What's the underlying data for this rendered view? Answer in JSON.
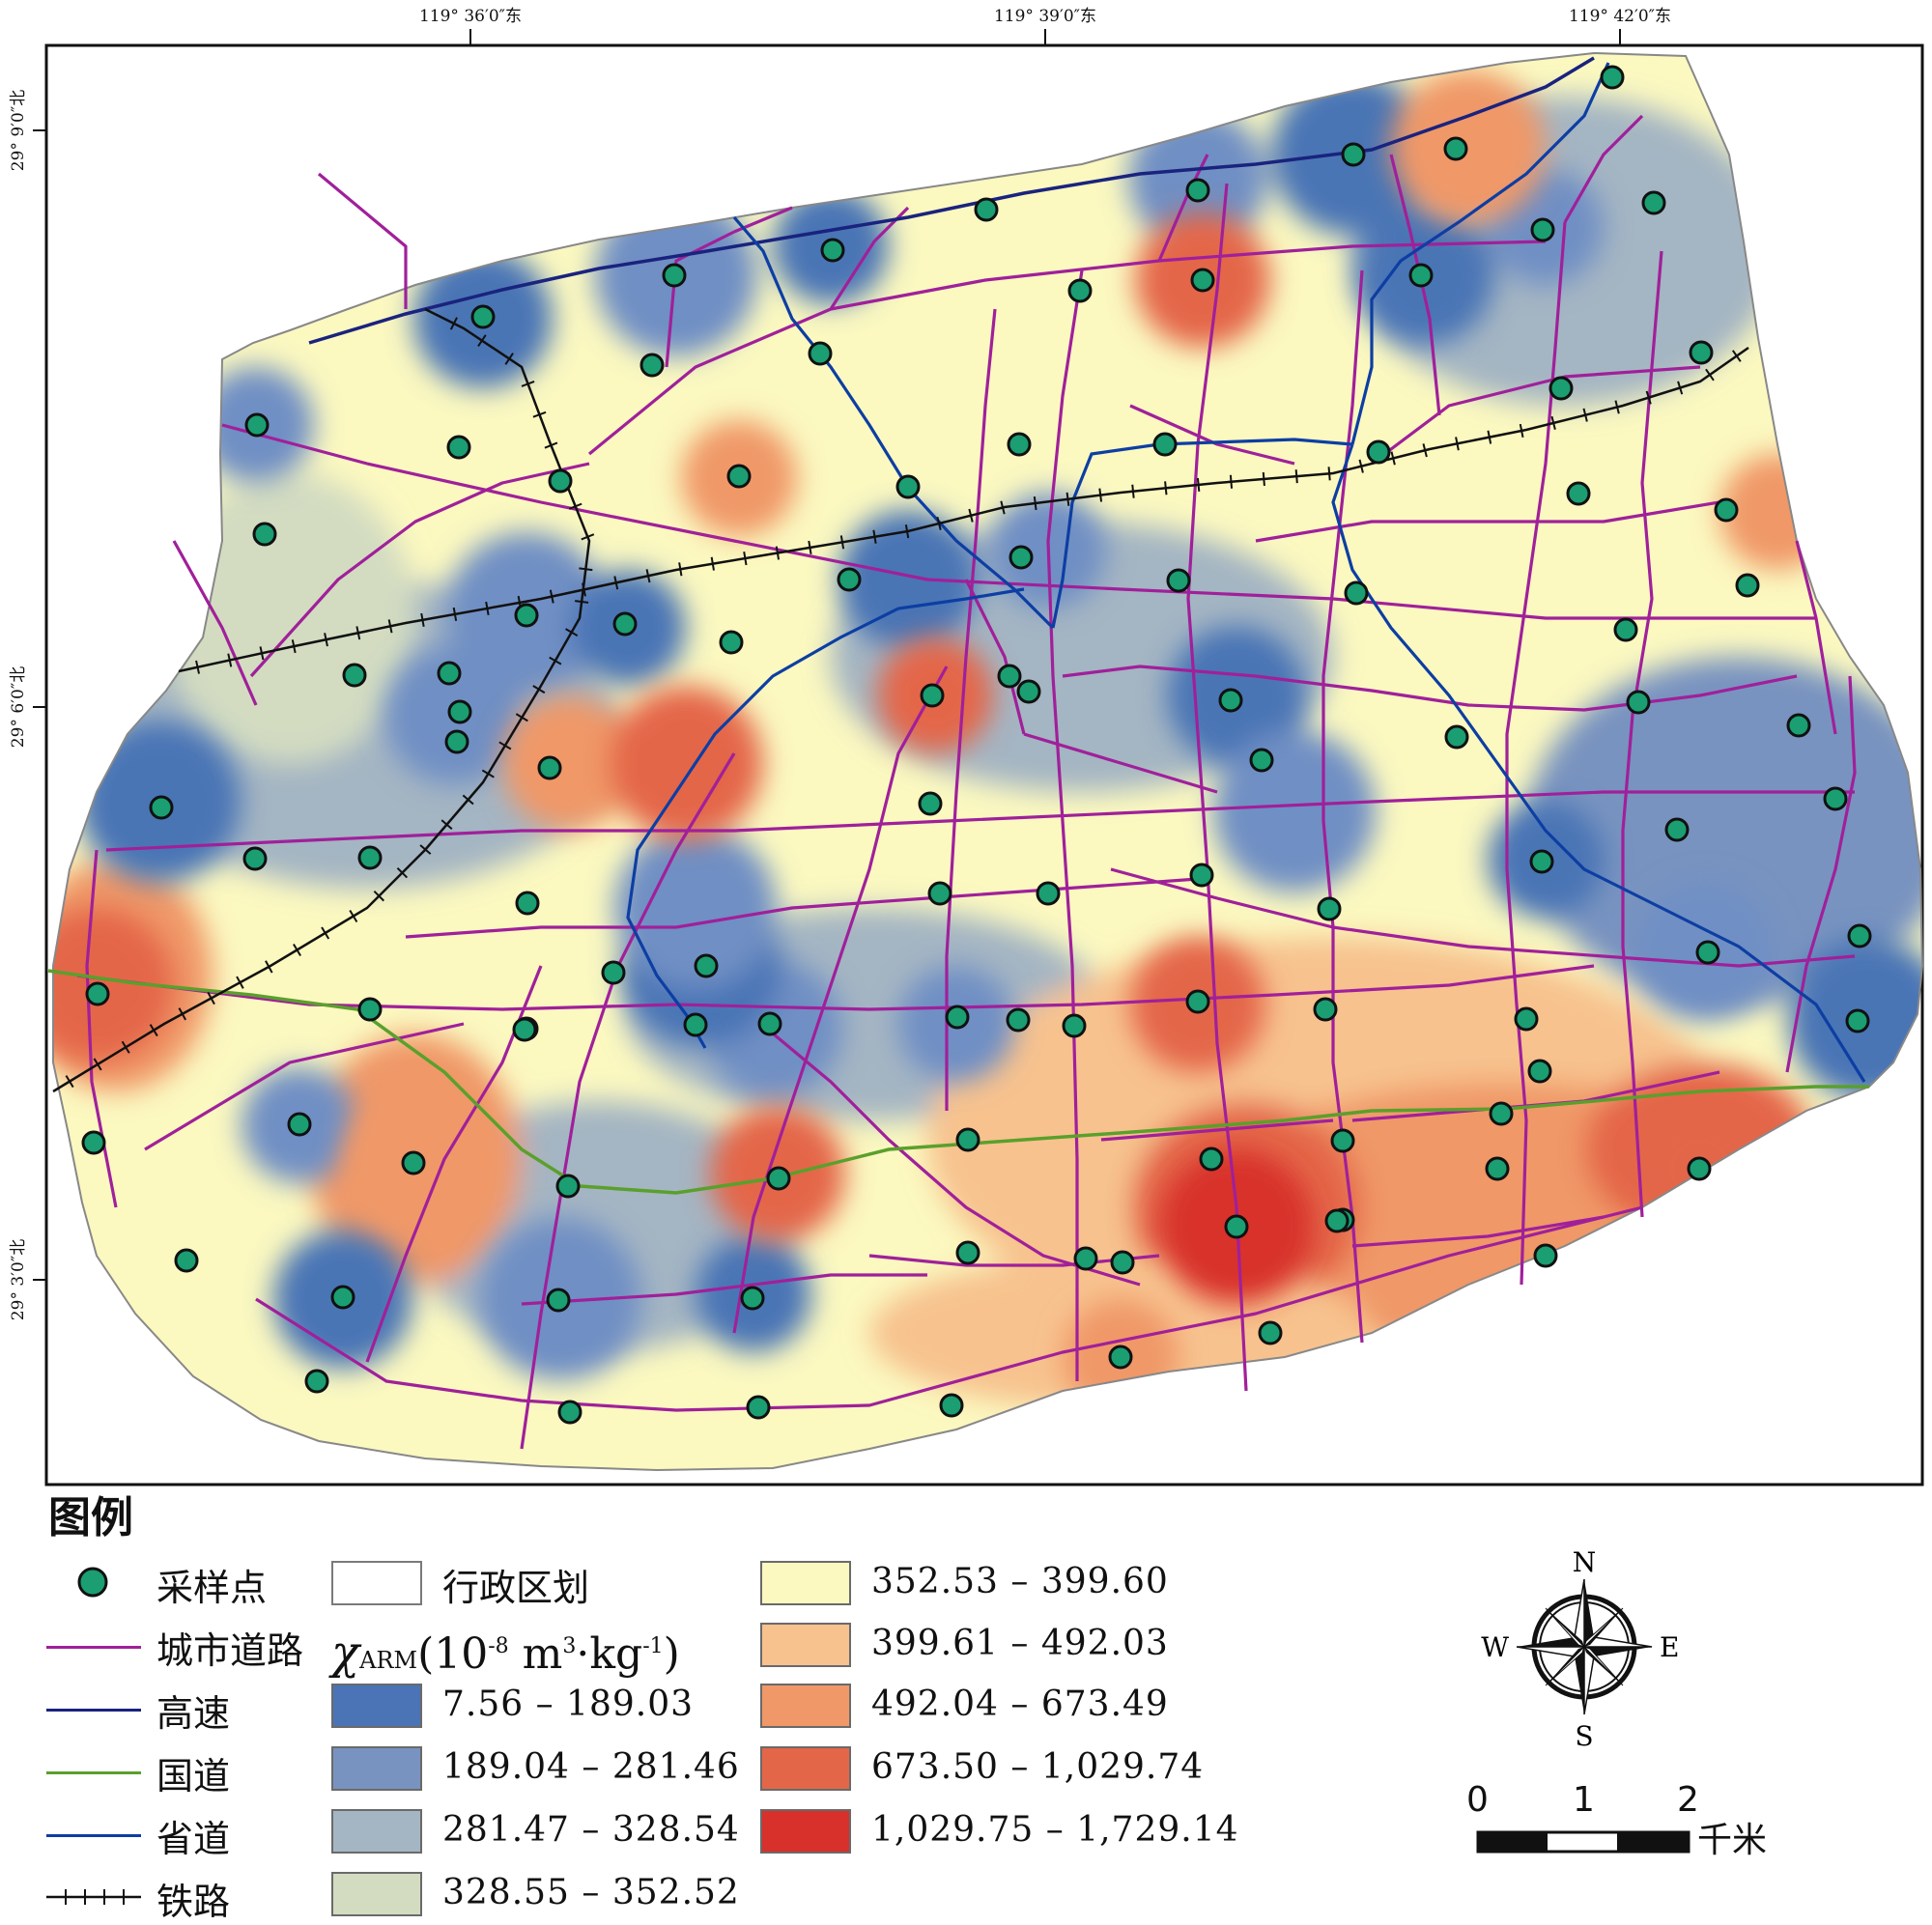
{
  "map": {
    "coords_top": [
      "119° 36′0″东",
      "119° 39′0″东",
      "119° 42′0″东"
    ],
    "coords_left": [
      "29° 9′0″北",
      "29° 6′0″北",
      "29° 3′0″北"
    ]
  },
  "legend": {
    "title": "图例",
    "sample_points": "采样点",
    "admin_boundary": "行政区划",
    "city_road": "城市道路",
    "highway": "高速",
    "national_road": "国道",
    "provincial_road": "省道",
    "railway": "铁路",
    "unit": {
      "symbol": "χ",
      "sub": "ARM",
      "base": "10",
      "exp1": "-8",
      "m": " m",
      "exp2": "3",
      "kg": "·kg",
      "exp3": "-1"
    },
    "classes": [
      {
        "range": "7.56  –  189.03",
        "color": "#4a74b5"
      },
      {
        "range": "189.04  –  281.46",
        "color": "#7893c0"
      },
      {
        "range": "281.47  –  328.54",
        "color": "#a4b5c3"
      },
      {
        "range": "328.55  –  352.52",
        "color": "#d3dcc1"
      },
      {
        "range": "352.53  –  399.60",
        "color": "#fbf8c0"
      },
      {
        "range": "399.61  –  492.03",
        "color": "#f7c28e"
      },
      {
        "range": "492.04  –  673.49",
        "color": "#f09868"
      },
      {
        "range": "673.50  –  1,029.74",
        "color": "#e46649"
      },
      {
        "range": "1,029.75  –  1,729.14",
        "color": "#d8302b"
      }
    ]
  },
  "compass": {
    "n": "N",
    "s": "S",
    "e": "E",
    "w": "W"
  },
  "scale_bar": {
    "ticks": [
      "0",
      "1",
      "2"
    ],
    "unit": "千米"
  },
  "colors": {
    "sample_point": "#1a9e72",
    "city_road": "#a0209a",
    "highway": "#1a237e",
    "national_road": "#5aa02c",
    "provincial_road": "#0d3ea3",
    "railway": "#111111"
  }
}
